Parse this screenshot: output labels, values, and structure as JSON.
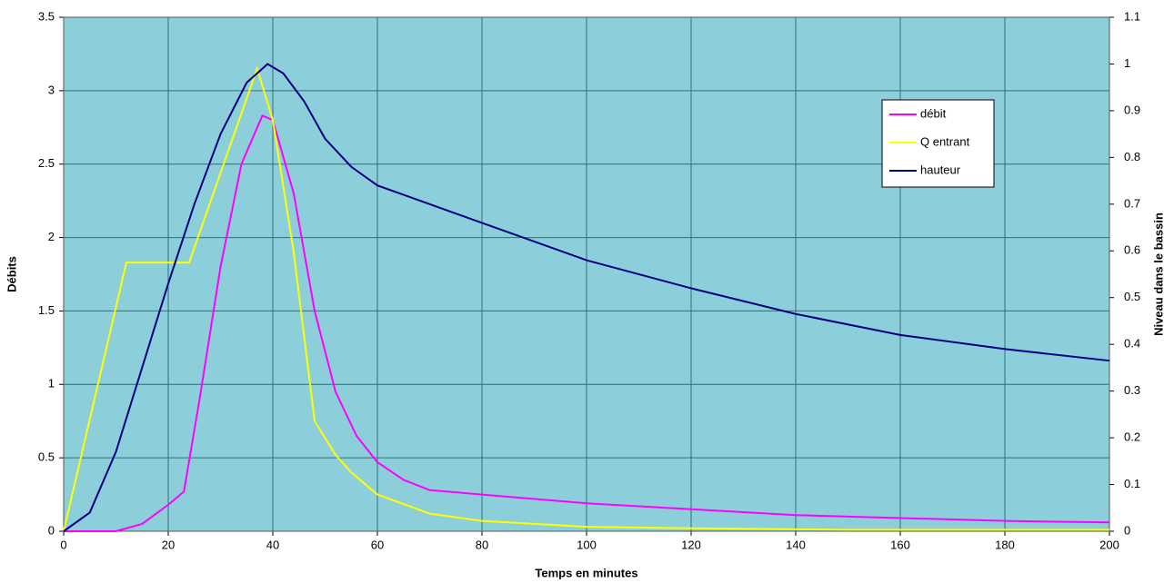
{
  "chart_data": {
    "type": "line",
    "x_label": "Temps en minutes",
    "y_label": "Débits",
    "y2_label": "Niveau dans le bassin",
    "xlim": [
      0,
      200
    ],
    "xticks": [
      0,
      20,
      40,
      60,
      80,
      100,
      120,
      140,
      160,
      180,
      200
    ],
    "ylim": [
      0,
      3.5
    ],
    "yticks": [
      0,
      0.5,
      1,
      1.5,
      2,
      2.5,
      3,
      3.5
    ],
    "y2lim": [
      0,
      1.1
    ],
    "y2ticks": [
      0,
      0.1,
      0.2,
      0.3,
      0.4,
      0.5,
      0.6,
      0.7,
      0.8,
      0.9,
      1,
      1.1
    ],
    "grid": true,
    "legend": "upper right",
    "series": [
      {
        "name": "débit",
        "color": "#ff00ff",
        "x": [
          0,
          10,
          15,
          20,
          23,
          26,
          30,
          34,
          38,
          40,
          44,
          48,
          52,
          56,
          60,
          65,
          70,
          80,
          100,
          120,
          140,
          160,
          180,
          200
        ],
        "values": [
          0,
          0,
          0.05,
          0.18,
          0.27,
          0.9,
          1.8,
          2.5,
          2.83,
          2.8,
          2.3,
          1.5,
          0.95,
          0.65,
          0.47,
          0.35,
          0.28,
          0.25,
          0.19,
          0.15,
          0.11,
          0.09,
          0.07,
          0.06
        ]
      },
      {
        "name": "Q entrant",
        "color": "#ffff00",
        "x": [
          0,
          12,
          24,
          37,
          40,
          44,
          48,
          52,
          55,
          60,
          70,
          80,
          100,
          120,
          150,
          200
        ],
        "values": [
          0,
          1.83,
          1.83,
          3.15,
          2.8,
          1.9,
          0.75,
          0.52,
          0.4,
          0.25,
          0.12,
          0.07,
          0.03,
          0.02,
          0.01,
          0.01
        ]
      },
      {
        "name": "hauteur",
        "color": "#000080",
        "axis": "y2",
        "x": [
          0,
          5,
          10,
          15,
          20,
          25,
          30,
          35,
          39,
          42,
          46,
          50,
          55,
          60,
          70,
          80,
          100,
          120,
          140,
          160,
          180,
          200
        ],
        "values": [
          0,
          0.04,
          0.17,
          0.35,
          0.53,
          0.7,
          0.85,
          0.96,
          1.0,
          0.98,
          0.92,
          0.84,
          0.78,
          0.74,
          0.7,
          0.66,
          0.58,
          0.52,
          0.465,
          0.42,
          0.39,
          0.365
        ]
      }
    ]
  }
}
